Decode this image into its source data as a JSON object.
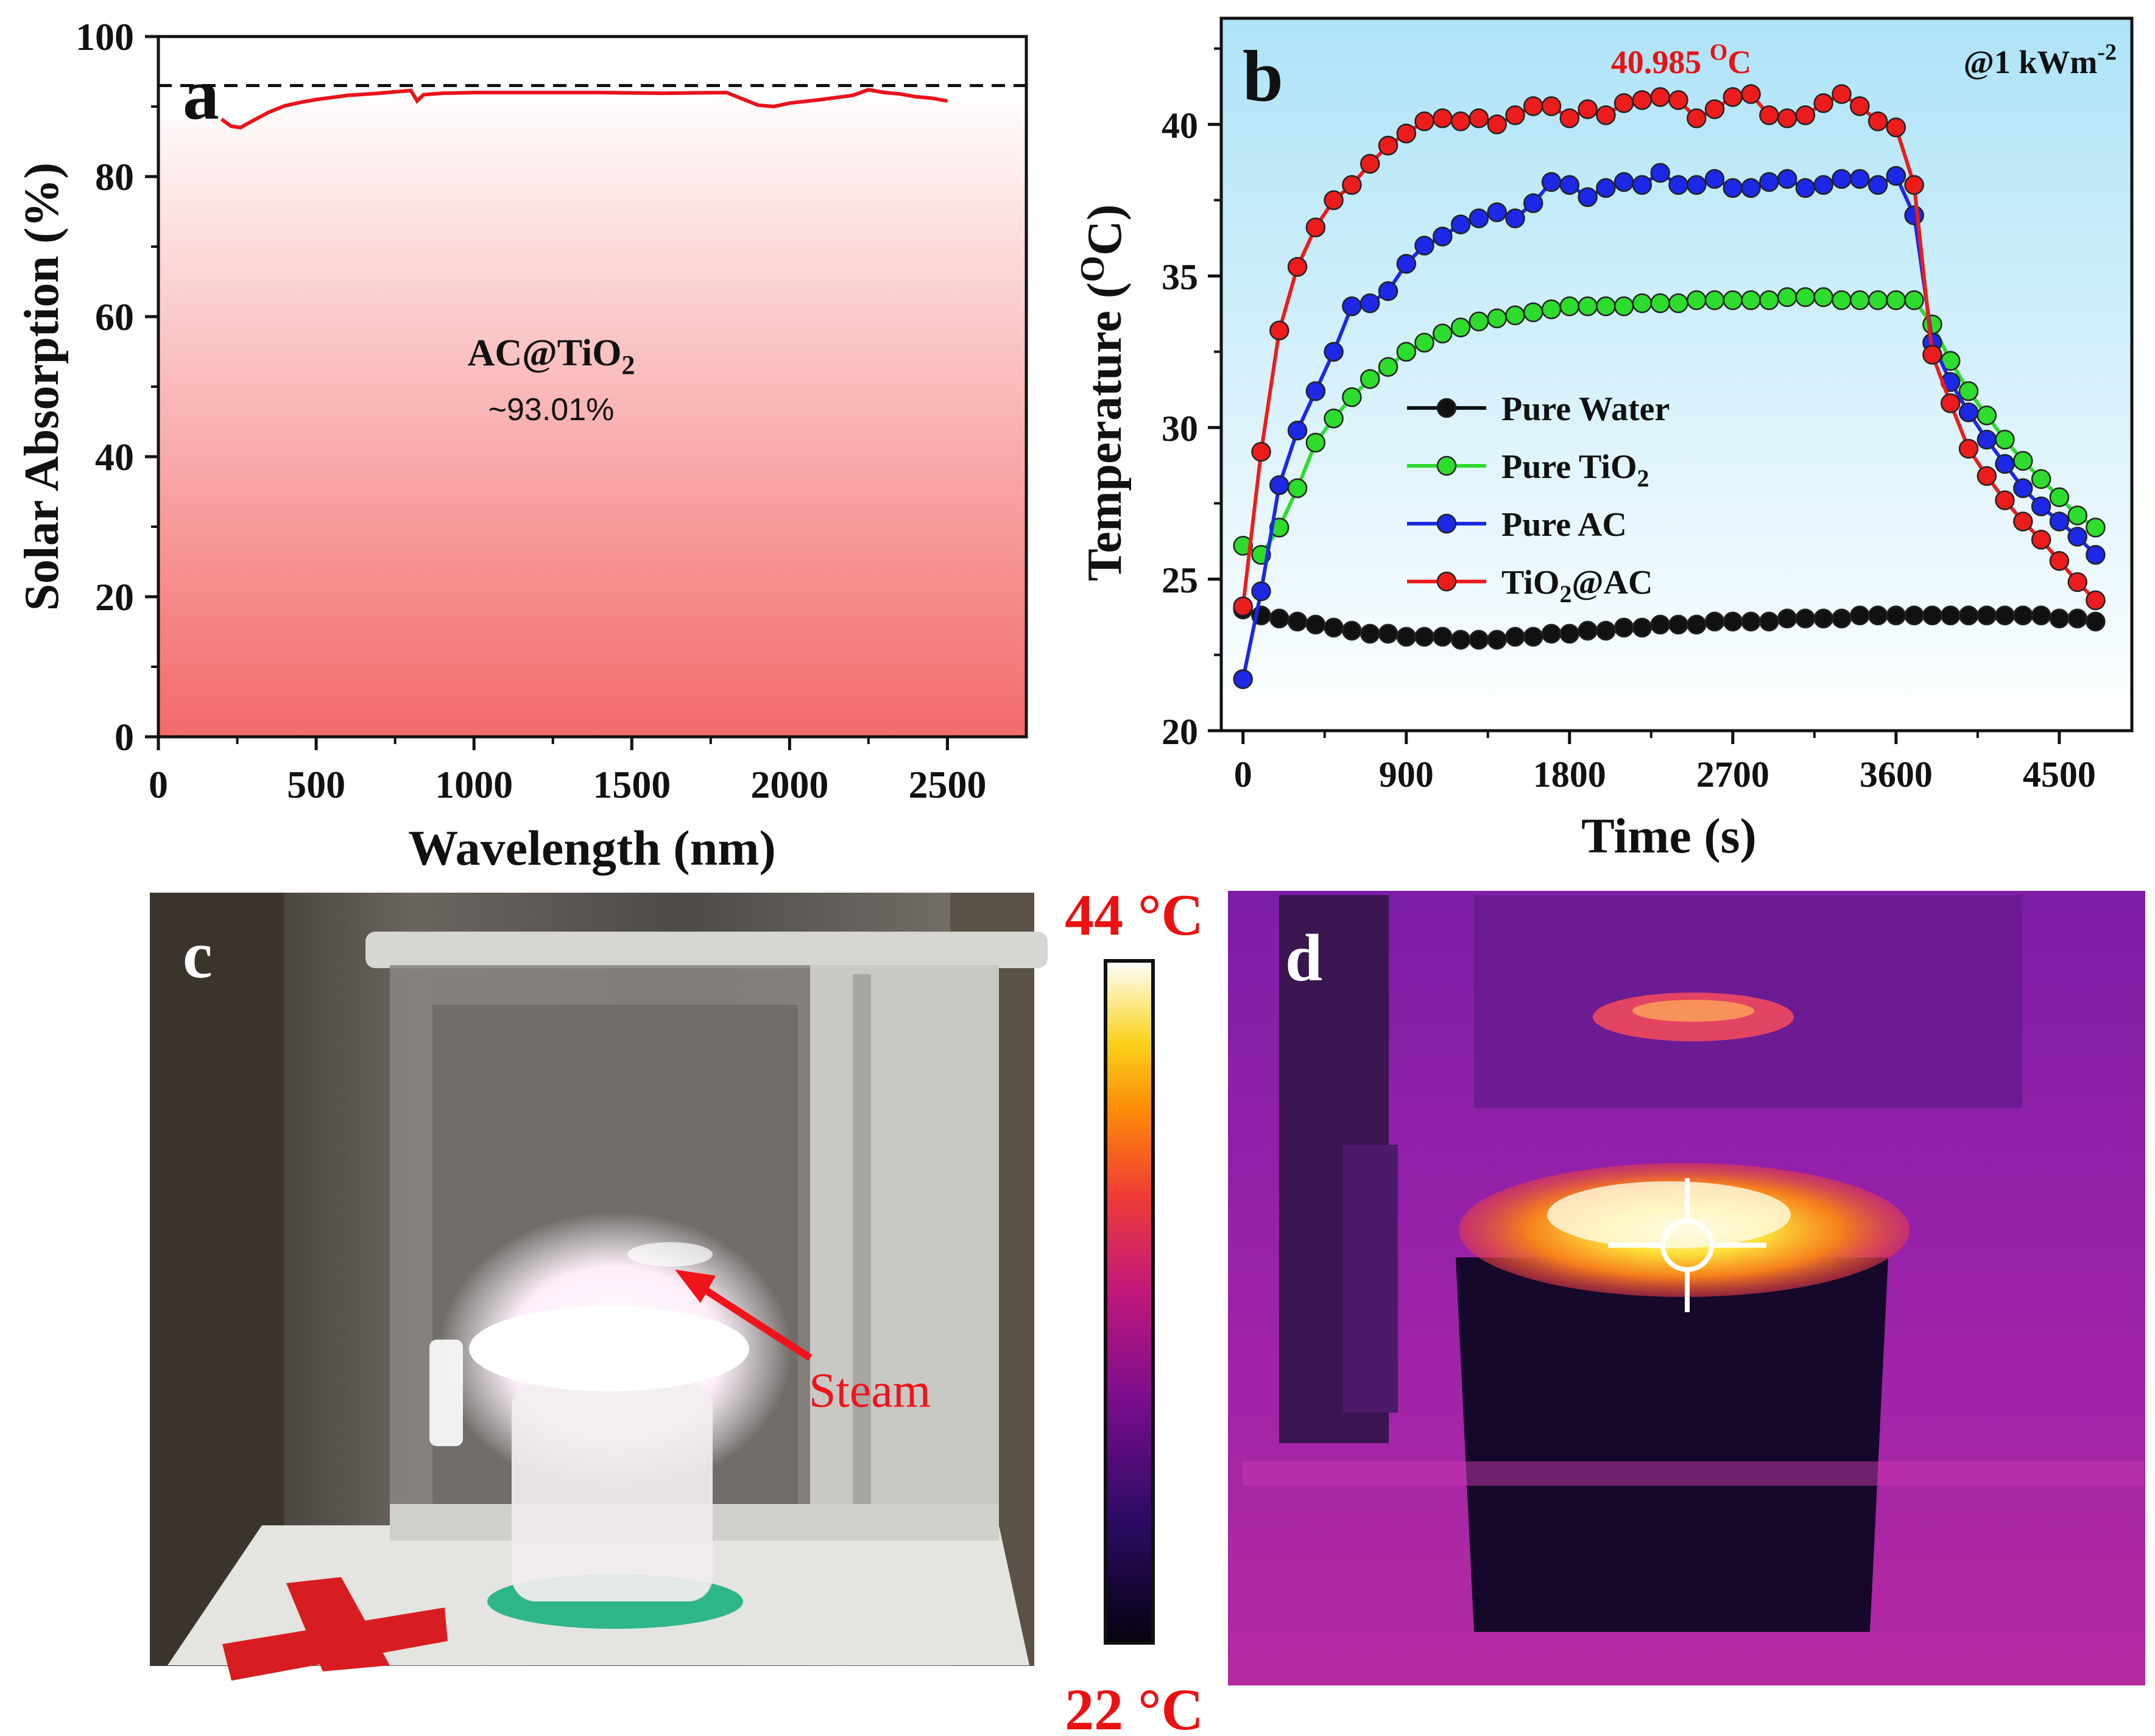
{
  "chart_data": [
    {
      "panel": "a",
      "type": "area",
      "title": "",
      "xlabel": "Wavelength (nm)",
      "ylabel": "Solar Absorption (%)",
      "xlim": [
        0,
        2750
      ],
      "ylim": [
        0,
        100
      ],
      "xticks": [
        0,
        500,
        1000,
        1500,
        2000,
        2500
      ],
      "yticks": [
        0,
        20,
        40,
        60,
        80,
        100
      ],
      "annotation_material": "AC@TiO",
      "annotation_material_sub": "2",
      "annotation_value": "~93.01%",
      "reference_line": 93,
      "series": [
        {
          "name": "AC@TiO2 absorption",
          "color": "#e8131b",
          "x": [
            200,
            230,
            260,
            300,
            350,
            400,
            450,
            500,
            600,
            700,
            800,
            820,
            840,
            900,
            1000,
            1200,
            1400,
            1600,
            1800,
            1900,
            1950,
            2000,
            2100,
            2200,
            2250,
            2300,
            2350,
            2400,
            2450,
            2500
          ],
          "y": [
            88.2,
            87.2,
            87.0,
            88.0,
            89.2,
            90.1,
            90.6,
            91.0,
            91.6,
            91.9,
            92.3,
            90.8,
            91.7,
            91.9,
            92.0,
            92.0,
            92.0,
            91.9,
            92.0,
            90.2,
            90.0,
            90.5,
            91.0,
            91.6,
            92.4,
            92.0,
            91.8,
            91.4,
            91.2,
            90.8
          ]
        }
      ]
    },
    {
      "panel": "b",
      "type": "line",
      "title": "",
      "xlabel": "Time (s)",
      "ylabel": "Temperature (",
      "ylabel_sup": "O",
      "ylabel_end": "C)",
      "xlim": [
        -120,
        4900
      ],
      "ylim": [
        20,
        43.5
      ],
      "xticks": [
        0,
        900,
        1800,
        2700,
        3600,
        4500
      ],
      "yticks": [
        20,
        25,
        30,
        35,
        40
      ],
      "peak_label_value": "40.985 ",
      "peak_label_sup": "O",
      "peak_label_unit": "C",
      "irradiance_label": "@1 kWm",
      "irradiance_sup": "-2",
      "x": [
        0,
        100,
        200,
        300,
        400,
        500,
        600,
        700,
        800,
        900,
        1000,
        1100,
        1200,
        1300,
        1400,
        1500,
        1600,
        1700,
        1800,
        1900,
        2000,
        2100,
        2200,
        2300,
        2400,
        2500,
        2600,
        2700,
        2800,
        2900,
        3000,
        3100,
        3200,
        3300,
        3400,
        3500,
        3600,
        3700,
        3800,
        3900,
        4000,
        4100,
        4200,
        4300,
        4400,
        4500,
        4600,
        4700
      ],
      "series": [
        {
          "name": "Pure Water",
          "legend_label": "Pure Water",
          "legend_sub": "",
          "legend_suffix": "",
          "color": "#111111",
          "values": [
            24.0,
            23.8,
            23.7,
            23.6,
            23.5,
            23.4,
            23.3,
            23.2,
            23.2,
            23.1,
            23.1,
            23.1,
            23.0,
            23.0,
            23.0,
            23.1,
            23.1,
            23.2,
            23.2,
            23.3,
            23.3,
            23.4,
            23.4,
            23.5,
            23.5,
            23.5,
            23.6,
            23.6,
            23.6,
            23.6,
            23.7,
            23.7,
            23.7,
            23.7,
            23.8,
            23.8,
            23.8,
            23.8,
            23.8,
            23.8,
            23.8,
            23.8,
            23.8,
            23.8,
            23.8,
            23.7,
            23.7,
            23.6
          ]
        },
        {
          "name": "Pure TiO2",
          "legend_label": "Pure TiO",
          "legend_sub": "2",
          "legend_suffix": "",
          "color": "#2ddc2d",
          "values": [
            26.1,
            25.8,
            26.7,
            28.0,
            29.5,
            30.3,
            31.0,
            31.6,
            32.0,
            32.5,
            32.8,
            33.1,
            33.3,
            33.5,
            33.6,
            33.7,
            33.8,
            33.9,
            34.0,
            34.0,
            34.0,
            34.0,
            34.1,
            34.1,
            34.1,
            34.2,
            34.2,
            34.2,
            34.2,
            34.2,
            34.3,
            34.3,
            34.3,
            34.2,
            34.2,
            34.2,
            34.2,
            34.2,
            33.4,
            32.2,
            31.2,
            30.4,
            29.6,
            28.9,
            28.3,
            27.7,
            27.1,
            26.7
          ]
        },
        {
          "name": "Pure AC",
          "legend_label": "Pure AC",
          "legend_sub": "",
          "legend_suffix": "",
          "color": "#1c28e6",
          "values": [
            21.7,
            24.6,
            28.1,
            29.9,
            31.2,
            32.5,
            34.0,
            34.1,
            34.5,
            35.4,
            36.0,
            36.3,
            36.7,
            36.9,
            37.1,
            36.9,
            37.4,
            38.1,
            38.0,
            37.6,
            37.9,
            38.1,
            38.0,
            38.4,
            38.0,
            38.0,
            38.2,
            37.9,
            37.9,
            38.1,
            38.2,
            37.9,
            38.0,
            38.2,
            38.2,
            38.0,
            38.3,
            37.0,
            32.8,
            31.5,
            30.5,
            29.6,
            28.8,
            28.0,
            27.4,
            26.9,
            26.4,
            25.8
          ]
        },
        {
          "name": "TiO2@AC",
          "legend_label": "TiO",
          "legend_sub": "2",
          "legend_suffix": "@AC",
          "color": "#ec1c1c",
          "values": [
            24.1,
            29.2,
            33.2,
            35.3,
            36.6,
            37.5,
            38.0,
            38.7,
            39.3,
            39.7,
            40.1,
            40.2,
            40.1,
            40.2,
            40.0,
            40.3,
            40.6,
            40.6,
            40.2,
            40.5,
            40.3,
            40.7,
            40.8,
            40.9,
            40.8,
            40.2,
            40.5,
            40.9,
            41.0,
            40.3,
            40.2,
            40.3,
            40.7,
            41.0,
            40.6,
            40.1,
            39.9,
            38.0,
            32.4,
            30.8,
            29.3,
            28.4,
            27.6,
            26.9,
            26.3,
            25.6,
            24.9,
            24.3
          ]
        }
      ]
    }
  ],
  "panels": {
    "a": {
      "letter": "a"
    },
    "b": {
      "letter": "b"
    },
    "c": {
      "letter": "c",
      "arrow_label": "Steam"
    },
    "d": {
      "letter": "d"
    }
  },
  "colorbar": {
    "max_label": "44 °C",
    "min_label": "22 °C",
    "max_value": 44,
    "min_value": 22
  },
  "colors": {
    "accent_red": "#e8131b",
    "label_red": "#ea1111"
  }
}
